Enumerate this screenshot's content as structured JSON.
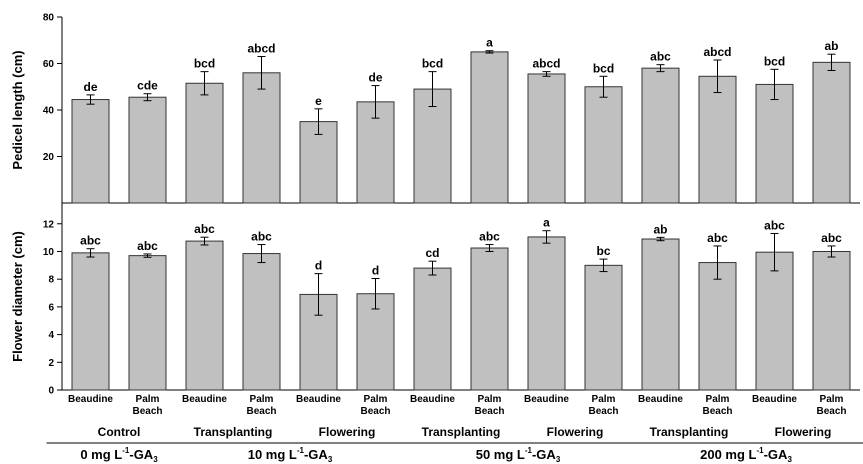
{
  "colors": {
    "bar_fill": "#c0c0c0",
    "bar_stroke": "#333333",
    "axis": "#000000"
  },
  "chart_data": [
    {
      "type": "bar",
      "ylabel": "Pedicel length (cm)",
      "ylim": [
        0,
        80
      ],
      "yticks": [
        20,
        40,
        60,
        80
      ],
      "categories": [
        "Beaudine",
        "Palm Beach",
        "Beaudine",
        "Palm Beach",
        "Beaudine",
        "Palm Beach",
        "Beaudine",
        "Palm Beach",
        "Beaudine",
        "Palm Beach",
        "Beaudine",
        "Palm Beach",
        "Beaudine",
        "Palm Beach"
      ],
      "values": [
        44.5,
        45.5,
        51.5,
        56.0,
        35.0,
        43.5,
        49.0,
        65.0,
        55.5,
        50.0,
        58.0,
        54.5,
        51.0,
        60.5
      ],
      "errors": [
        2.0,
        1.5,
        5.0,
        7.0,
        5.5,
        7.0,
        7.5,
        0.5,
        1.0,
        4.5,
        1.5,
        7.0,
        6.5,
        3.5
      ],
      "labels": [
        "de",
        "cde",
        "bcd",
        "abcd",
        "e",
        "de",
        "bcd",
        "a",
        "abcd",
        "bcd",
        "abc",
        "abcd",
        "bcd",
        "ab"
      ],
      "grid": false
    },
    {
      "type": "bar",
      "ylabel": "Flower diameter (cm)",
      "ylim": [
        0,
        13.5
      ],
      "yticks": [
        0,
        2,
        4,
        6,
        8,
        10,
        12
      ],
      "categories": [
        "Beaudine",
        "Palm Beach",
        "Beaudine",
        "Palm Beach",
        "Beaudine",
        "Palm Beach",
        "Beaudine",
        "Palm Beach",
        "Beaudine",
        "Palm Beach",
        "Beaudine",
        "Palm Beach",
        "Beaudine",
        "Palm Beach"
      ],
      "values": [
        9.9,
        9.7,
        10.75,
        9.85,
        6.9,
        6.95,
        8.8,
        10.25,
        11.05,
        9.0,
        10.9,
        9.2,
        9.95,
        10.0
      ],
      "errors": [
        0.3,
        0.12,
        0.28,
        0.65,
        1.5,
        1.1,
        0.5,
        0.25,
        0.45,
        0.45,
        0.12,
        1.2,
        1.35,
        0.4
      ],
      "labels": [
        "abc",
        "abc",
        "abc",
        "abc",
        "d",
        "d",
        "cd",
        "abc",
        "a",
        "bc",
        "ab",
        "abc",
        "abc",
        "abc"
      ],
      "grid": false
    }
  ],
  "x_axis": {
    "cultivars": [
      {
        "line1": "Beaudine",
        "line2": ""
      },
      {
        "line1": "Palm",
        "line2": "Beach"
      },
      {
        "line1": "Beaudine",
        "line2": ""
      },
      {
        "line1": "Palm",
        "line2": "Beach"
      },
      {
        "line1": "Beaudine",
        "line2": ""
      },
      {
        "line1": "Palm",
        "line2": "Beach"
      },
      {
        "line1": "Beaudine",
        "line2": ""
      },
      {
        "line1": "Palm",
        "line2": "Beach"
      },
      {
        "line1": "Beaudine",
        "line2": ""
      },
      {
        "line1": "Palm",
        "line2": "Beach"
      },
      {
        "line1": "Beaudine",
        "line2": ""
      },
      {
        "line1": "Palm",
        "line2": "Beach"
      },
      {
        "line1": "Beaudine",
        "line2": ""
      },
      {
        "line1": "Palm",
        "line2": "Beach"
      }
    ],
    "stages": [
      "Control",
      "Transplanting",
      "Flowering",
      "Transplanting",
      "Flowering",
      "Transplanting",
      "Flowering"
    ],
    "concentrations": [
      {
        "prefix": "0 mg L",
        "sup": "-1",
        "mid": "-GA",
        "sub": "3"
      },
      {
        "prefix": "10 mg L",
        "sup": "-1",
        "mid": "-GA",
        "sub": "3"
      },
      {
        "prefix": "50 mg L",
        "sup": "-1",
        "mid": "-GA",
        "sub": "3"
      },
      {
        "prefix": "200 mg L",
        "sup": "-1",
        "mid": "-GA",
        "sub": "3"
      }
    ]
  }
}
